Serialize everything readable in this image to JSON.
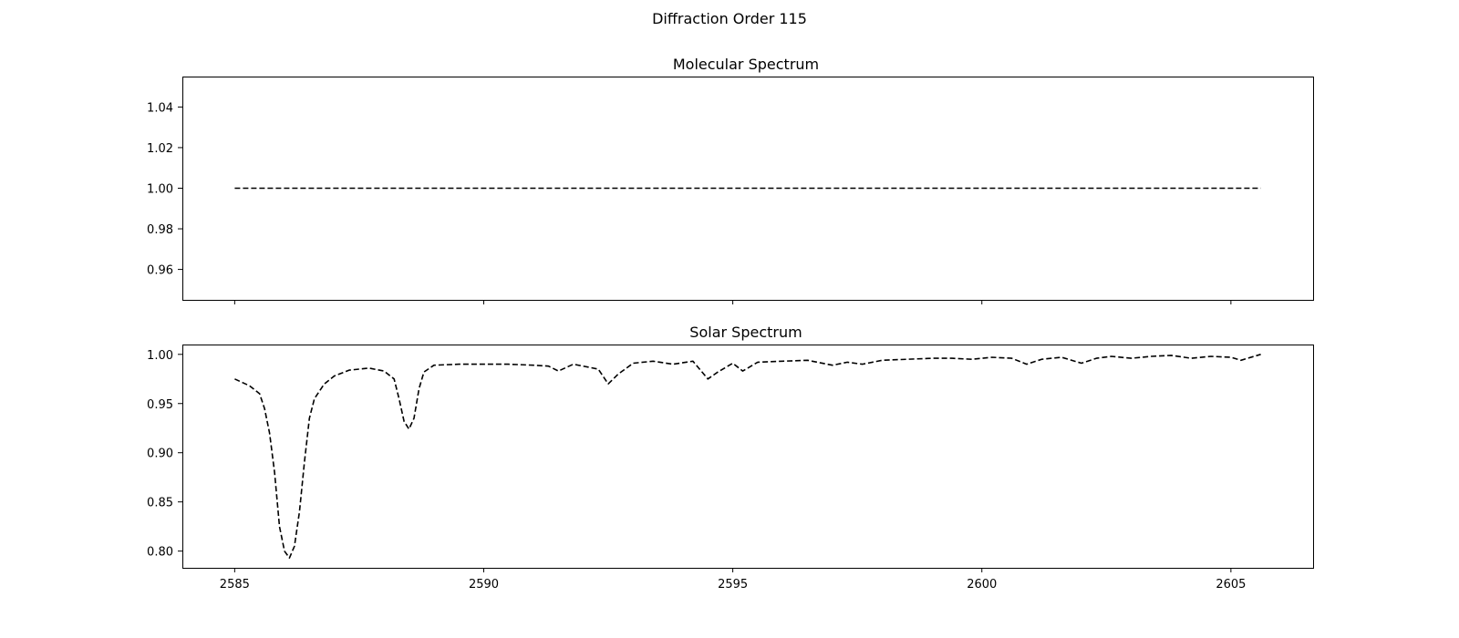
{
  "figure": {
    "suptitle": "Diffraction Order 115"
  },
  "colors": {
    "line": "#000000",
    "axes": "#000000",
    "background": "#ffffff"
  },
  "chart_data": [
    {
      "type": "line",
      "title": "Molecular Spectrum",
      "xlabel": "",
      "ylabel": "",
      "xlim": [
        2583.95,
        2606.65
      ],
      "ylim": [
        0.945,
        1.055
      ],
      "xticks": [
        2585,
        2590,
        2595,
        2600,
        2605
      ],
      "xtick_labels_visible": false,
      "yticks": [
        0.96,
        0.98,
        1.0,
        1.02,
        1.04
      ],
      "ytick_labels": [
        "0.96",
        "0.98",
        "1.00",
        "1.02",
        "1.04"
      ],
      "grid": false,
      "line_style": "dashed",
      "series": [
        {
          "x": [
            2585.0,
            2605.6
          ],
          "y": [
            1.0,
            1.0
          ]
        }
      ]
    },
    {
      "type": "line",
      "title": "Solar Spectrum",
      "xlabel": "",
      "ylabel": "",
      "xlim": [
        2583.95,
        2606.65
      ],
      "ylim": [
        0.783,
        1.01
      ],
      "xticks": [
        2585,
        2590,
        2595,
        2600,
        2605
      ],
      "xtick_labels": [
        "2585",
        "2590",
        "2595",
        "2600",
        "2605"
      ],
      "yticks": [
        0.8,
        0.85,
        0.9,
        0.95,
        1.0
      ],
      "ytick_labels": [
        "0.80",
        "0.85",
        "0.90",
        "0.95",
        "1.00"
      ],
      "grid": false,
      "line_style": "dashed",
      "series": [
        {
          "x": [
            2585.0,
            2585.3,
            2585.5,
            2585.6,
            2585.7,
            2585.8,
            2585.9,
            2586.0,
            2586.1,
            2586.2,
            2586.3,
            2586.4,
            2586.5,
            2586.6,
            2586.8,
            2587.0,
            2587.3,
            2587.7,
            2588.0,
            2588.2,
            2588.3,
            2588.4,
            2588.5,
            2588.6,
            2588.7,
            2588.8,
            2589.0,
            2589.5,
            2590.0,
            2590.5,
            2591.0,
            2591.3,
            2591.5,
            2591.8,
            2592.1,
            2592.3,
            2592.5,
            2592.7,
            2593.0,
            2593.4,
            2593.8,
            2594.2,
            2594.5,
            2594.7,
            2595.0,
            2595.2,
            2595.5,
            2596.0,
            2596.5,
            2597.0,
            2597.3,
            2597.6,
            2598.0,
            2598.5,
            2599.0,
            2599.4,
            2599.8,
            2600.2,
            2600.6,
            2600.9,
            2601.2,
            2601.6,
            2602.0,
            2602.3,
            2602.6,
            2603.0,
            2603.4,
            2603.8,
            2604.2,
            2604.6,
            2605.0,
            2605.2,
            2605.6
          ],
          "y": [
            0.975,
            0.968,
            0.96,
            0.945,
            0.92,
            0.88,
            0.825,
            0.8,
            0.793,
            0.805,
            0.84,
            0.89,
            0.935,
            0.955,
            0.97,
            0.978,
            0.984,
            0.986,
            0.983,
            0.975,
            0.955,
            0.932,
            0.924,
            0.935,
            0.965,
            0.982,
            0.989,
            0.99,
            0.99,
            0.99,
            0.989,
            0.988,
            0.983,
            0.99,
            0.987,
            0.985,
            0.97,
            0.98,
            0.991,
            0.993,
            0.99,
            0.993,
            0.975,
            0.982,
            0.991,
            0.983,
            0.992,
            0.993,
            0.994,
            0.989,
            0.992,
            0.99,
            0.994,
            0.995,
            0.996,
            0.996,
            0.995,
            0.997,
            0.996,
            0.99,
            0.995,
            0.997,
            0.991,
            0.996,
            0.998,
            0.996,
            0.998,
            0.999,
            0.996,
            0.998,
            0.997,
            0.994,
            1.0
          ]
        }
      ]
    }
  ]
}
